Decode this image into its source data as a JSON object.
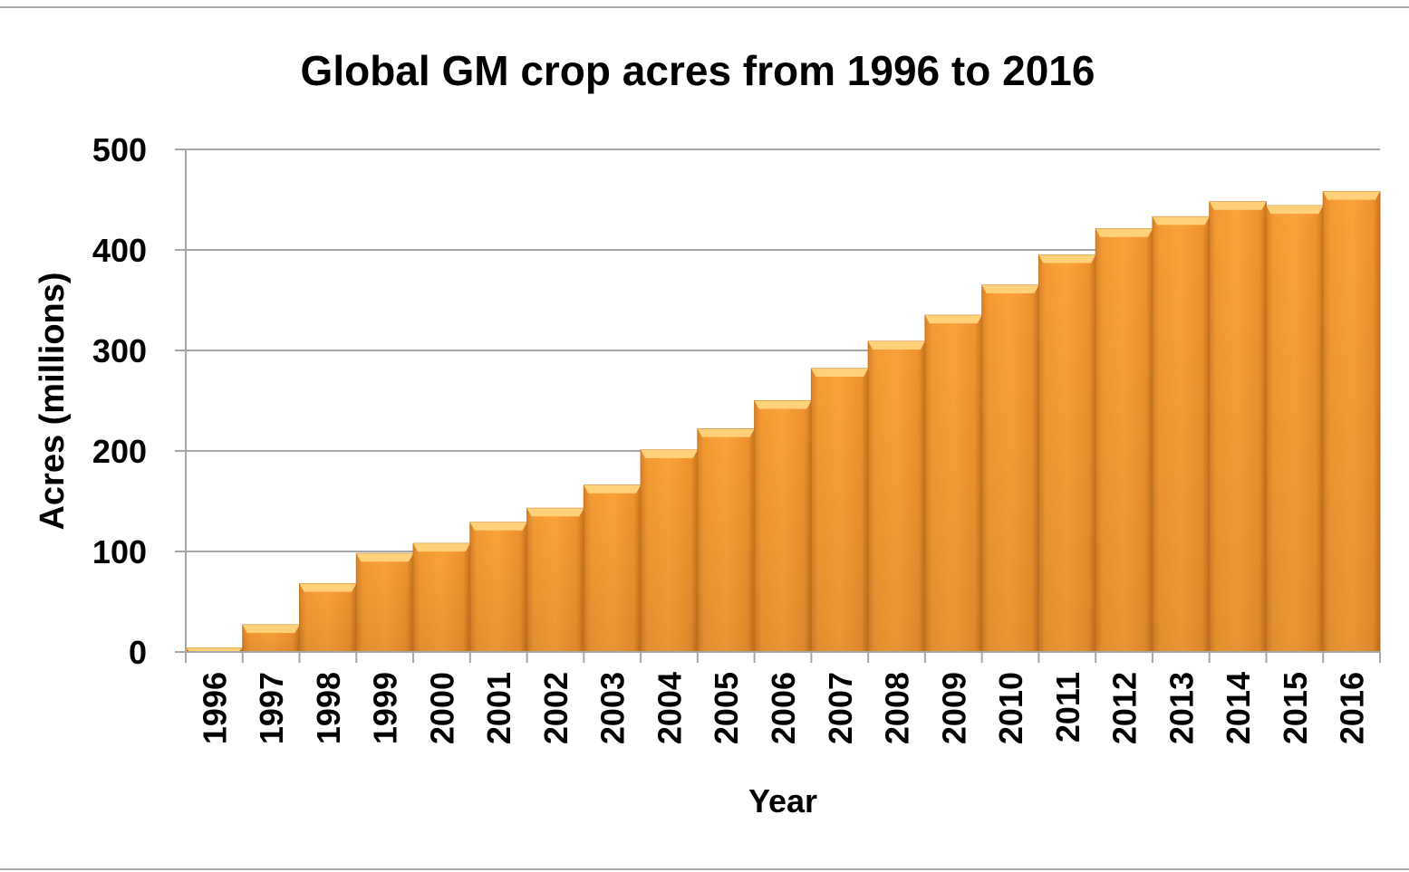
{
  "chart_data": {
    "type": "bar",
    "title": "Global GM crop acres from 1996 to 2016",
    "xlabel": "Year",
    "ylabel": "Acres (millions)",
    "ylim": [
      0,
      500
    ],
    "yticks": [
      0,
      100,
      200,
      300,
      400,
      500
    ],
    "grid": true,
    "legend": "none",
    "categories": [
      "1996",
      "1997",
      "1998",
      "1999",
      "2000",
      "2001",
      "2002",
      "2003",
      "2004",
      "2005",
      "2006",
      "2007",
      "2008",
      "2009",
      "2010",
      "2011",
      "2012",
      "2013",
      "2014",
      "2015",
      "2016"
    ],
    "values": [
      4,
      27,
      68,
      98,
      108,
      129,
      143,
      166,
      201,
      222,
      250,
      282,
      309,
      335,
      365,
      395,
      421,
      433,
      448,
      444,
      458
    ],
    "colors": {
      "bar": "#F89A2E",
      "bar_edge": "#C8741F",
      "bar_top": "#FFD27A",
      "grid": "#A6A6A6"
    }
  }
}
